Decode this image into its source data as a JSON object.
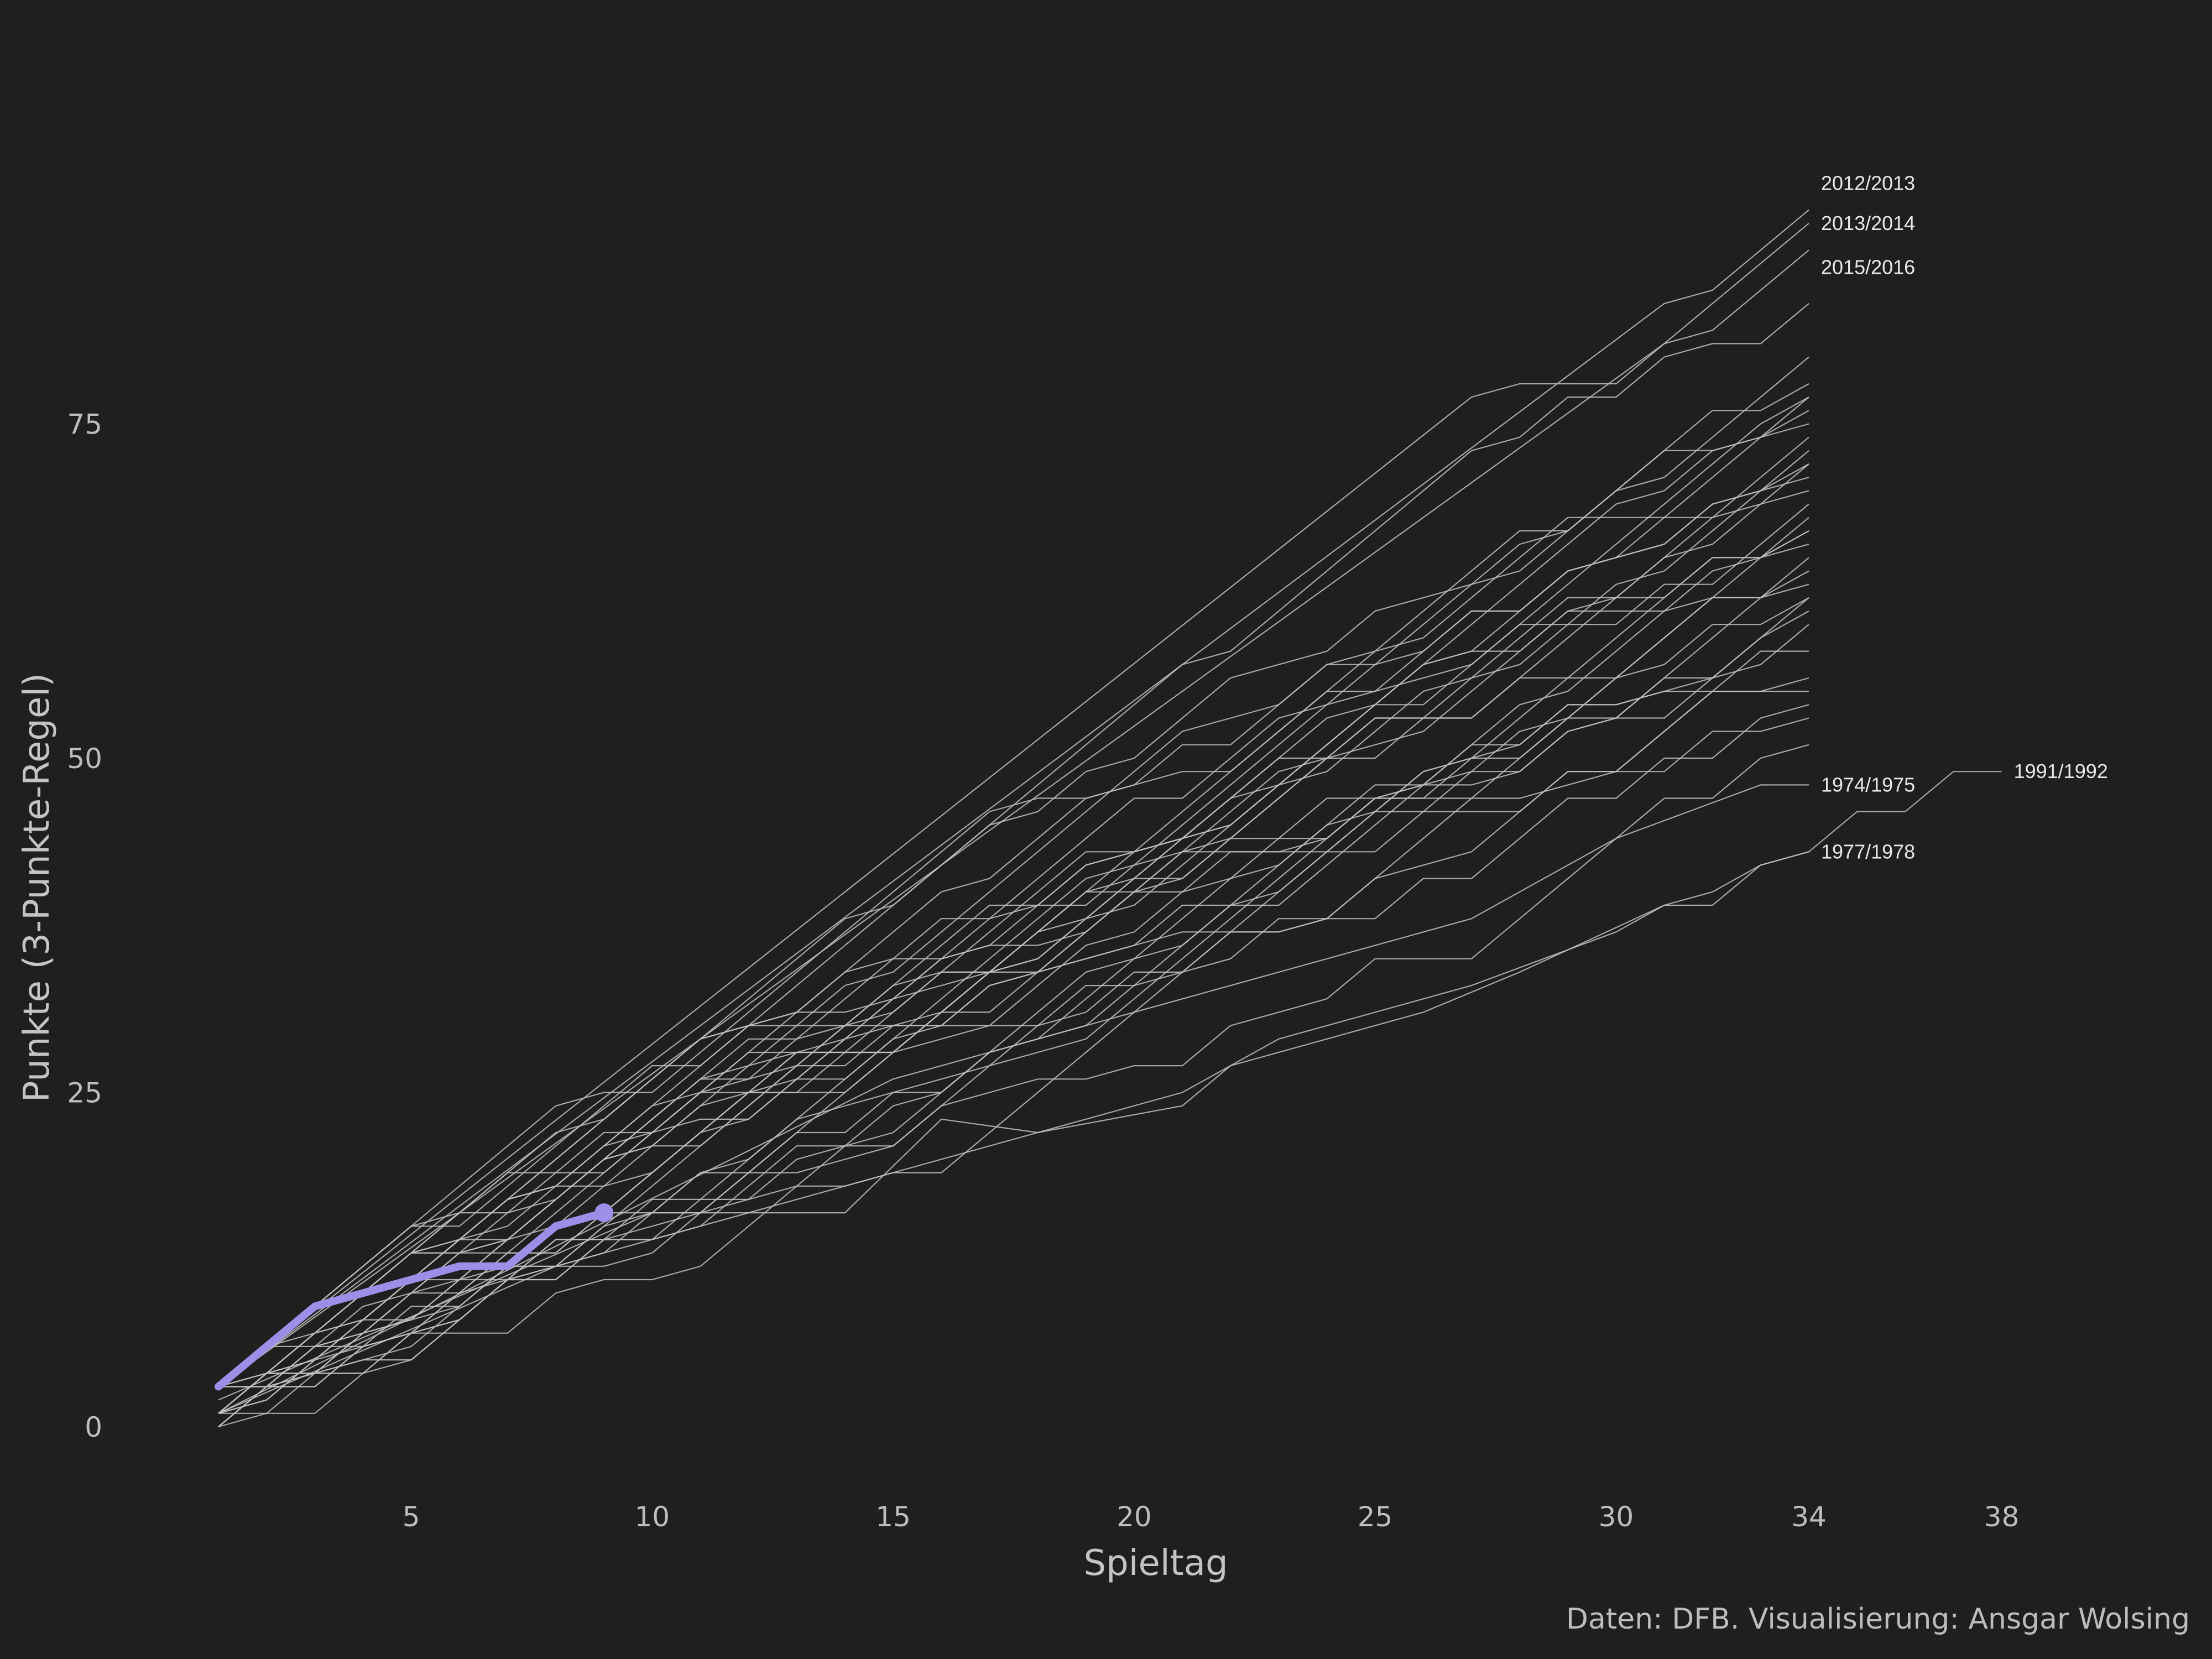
{
  "chart_data": {
    "type": "line",
    "title": "",
    "xlabel": "Spieltag",
    "ylabel": "Punkte (3-Punkte-Regel)",
    "caption": "Daten: DFB. Visualisierung: Ansgar Wolsing",
    "xlim": [
      1,
      38
    ],
    "ylim": [
      -3,
      103
    ],
    "x_ticks": [
      5,
      10,
      15,
      20,
      25,
      30,
      34,
      38
    ],
    "y_ticks": [
      0,
      25,
      50,
      75
    ],
    "grid": false,
    "colors": {
      "background": "#1f1f1f",
      "history": "#bfbfbf",
      "highlight": "#9b8fe8"
    },
    "highlight": {
      "x": [
        1,
        2,
        3,
        4,
        5,
        6,
        7,
        8,
        9
      ],
      "y": [
        3,
        6,
        9,
        10,
        11,
        12,
        12,
        15,
        16
      ]
    },
    "labeled_series": [
      {
        "name": "2012/2013",
        "x": [
          1,
          34
        ],
        "y": [
          3,
          91
        ],
        "label_y": 93,
        "via": [
          [
            31,
            84
          ],
          [
            32,
            85
          ]
        ]
      },
      {
        "name": "2013/2014",
        "x": [
          1,
          34
        ],
        "y": [
          3,
          90
        ],
        "label_y": 90,
        "via": [
          [
            27,
            77
          ],
          [
            28,
            78
          ],
          [
            30,
            78
          ],
          [
            31,
            81
          ]
        ]
      },
      {
        "name": "2015/2016",
        "x": [
          1,
          34
        ],
        "y": [
          3,
          88
        ],
        "label_y": 86.7,
        "via": [
          [
            31,
            81
          ],
          [
            32,
            82
          ]
        ]
      },
      {
        "name": "1974/1975",
        "x": [
          1,
          34
        ],
        "y": [
          1,
          48
        ],
        "label_y": 48,
        "via": [
          [
            15,
            26
          ],
          [
            22,
            33
          ],
          [
            27,
            38
          ],
          [
            30,
            44
          ],
          [
            33,
            48
          ]
        ]
      },
      {
        "name": "1977/1978",
        "x": [
          1,
          34
        ],
        "y": [
          1,
          43
        ],
        "label_y": 43,
        "via": [
          [
            8,
            12
          ],
          [
            15,
            19
          ],
          [
            21,
            25
          ],
          [
            23,
            29
          ],
          [
            27,
            33
          ],
          [
            30,
            37
          ],
          [
            31,
            39
          ],
          [
            32,
            40
          ],
          [
            33,
            42
          ]
        ]
      },
      {
        "name": "1991/1992",
        "x": [
          1,
          38
        ],
        "y": [
          2,
          49
        ],
        "label_y": 49,
        "via": [
          [
            10,
            16
          ],
          [
            14,
            16
          ],
          [
            16,
            23
          ],
          [
            18,
            22
          ],
          [
            21,
            24
          ],
          [
            22,
            27
          ],
          [
            24,
            29
          ],
          [
            26,
            31
          ],
          [
            28,
            34
          ],
          [
            31,
            39
          ],
          [
            32,
            39
          ],
          [
            33,
            42
          ],
          [
            34,
            43
          ],
          [
            35,
            46
          ],
          [
            36,
            46
          ],
          [
            37,
            49
          ]
        ]
      }
    ],
    "series_summary": {
      "seasons": 60,
      "final_points_34": [
        51,
        53,
        54,
        55,
        56,
        58,
        60,
        61,
        62,
        63,
        63,
        64,
        65,
        66,
        67,
        67,
        68,
        69,
        70,
        71,
        72,
        73,
        74,
        75,
        75,
        76,
        77,
        78,
        79,
        82,
        84
      ]
    }
  }
}
